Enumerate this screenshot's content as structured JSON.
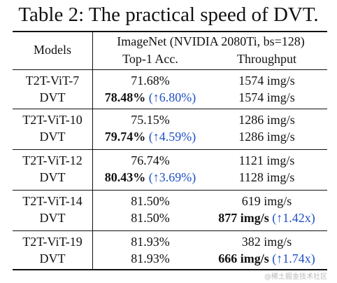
{
  "caption": "Table 2: The practical speed of DVT.",
  "header": {
    "models": "Models",
    "group": "ImageNet (NVIDIA 2080Ti, bs=128)",
    "acc": "Top-1 Acc.",
    "throughput": "Throughput"
  },
  "groups": [
    {
      "base": {
        "model": "T2T-ViT-7",
        "acc": "71.68%",
        "throughput": "1574 img/s"
      },
      "dvt": {
        "model": "DVT",
        "acc": "78.48%",
        "acc_gain": "(↑6.80%)",
        "throughput": "1574 img/s",
        "throughput_gain": ""
      }
    },
    {
      "base": {
        "model": "T2T-ViT-10",
        "acc": "75.15%",
        "throughput": "1286 img/s"
      },
      "dvt": {
        "model": "DVT",
        "acc": "79.74%",
        "acc_gain": "(↑4.59%)",
        "throughput": "1286 img/s",
        "throughput_gain": ""
      }
    },
    {
      "base": {
        "model": "T2T-ViT-12",
        "acc": "76.74%",
        "throughput": "1121 img/s"
      },
      "dvt": {
        "model": "DVT",
        "acc": "80.43%",
        "acc_gain": "(↑3.69%)",
        "throughput": "1128 img/s",
        "throughput_gain": ""
      }
    },
    {
      "base": {
        "model": "T2T-ViT-14",
        "acc": "81.50%",
        "throughput": "619 img/s"
      },
      "dvt": {
        "model": "DVT",
        "acc": "81.50%",
        "acc_gain": "",
        "throughput": "877 img/s",
        "throughput_gain": "(↑1.42x)"
      }
    },
    {
      "base": {
        "model": "T2T-ViT-19",
        "acc": "81.93%",
        "throughput": "382 img/s"
      },
      "dvt": {
        "model": "DVT",
        "acc": "81.93%",
        "acc_gain": "",
        "throughput": "666 img/s",
        "throughput_gain": "(↑1.74x)"
      }
    }
  ],
  "watermark": "@稀土掘金技术社区",
  "colors": {
    "text": "#111111",
    "gain": "#1f4fc4"
  }
}
